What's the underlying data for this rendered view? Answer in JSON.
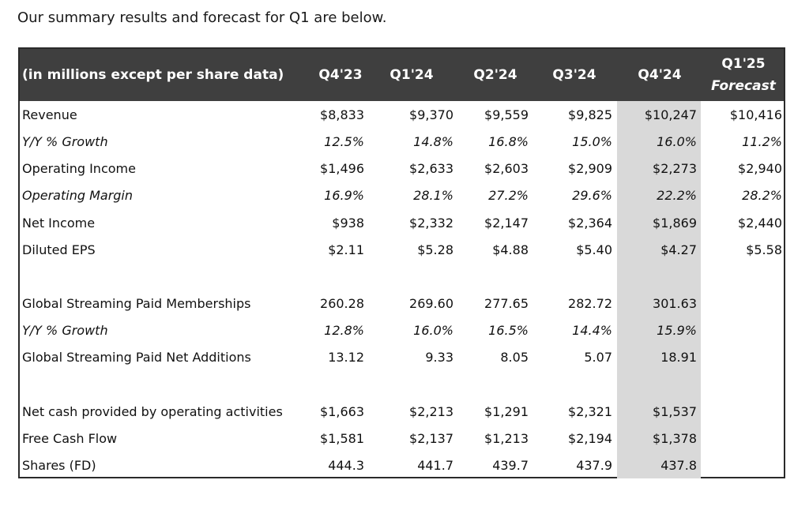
{
  "intro_text": "Our summary results and forecast for Q1 are below.",
  "table": {
    "header_label": "(in millions except per share data)",
    "columns": [
      "Q4'23",
      "Q1'24",
      "Q2'24",
      "Q3'24",
      "Q4'24"
    ],
    "forecast_column": {
      "line1": "Q1'25",
      "line2": "Forecast"
    },
    "highlighted_column": "Q4'24",
    "rows": [
      {
        "label": "Revenue",
        "italic": false,
        "values": [
          "$8,833",
          "$9,370",
          "$9,559",
          "$9,825",
          "$10,247",
          "$10,416"
        ]
      },
      {
        "label": "Y/Y % Growth",
        "italic": true,
        "values": [
          "12.5%",
          "14.8%",
          "16.8%",
          "15.0%",
          "16.0%",
          "11.2%"
        ]
      },
      {
        "label": "Operating Income",
        "italic": false,
        "values": [
          "$1,496",
          "$2,633",
          "$2,603",
          "$2,909",
          "$2,273",
          "$2,940"
        ]
      },
      {
        "label": "Operating Margin",
        "italic": true,
        "values": [
          "16.9%",
          "28.1%",
          "27.2%",
          "29.6%",
          "22.2%",
          "28.2%"
        ]
      },
      {
        "label": "Net Income",
        "italic": false,
        "values": [
          "$938",
          "$2,332",
          "$2,147",
          "$2,364",
          "$1,869",
          "$2,440"
        ]
      },
      {
        "label": "Diluted EPS",
        "italic": false,
        "values": [
          "$2.11",
          "$5.28",
          "$4.88",
          "$5.40",
          "$4.27",
          "$5.58"
        ]
      },
      {
        "label": "Global Streaming Paid Memberships",
        "italic": false,
        "values": [
          "260.28",
          "269.60",
          "277.65",
          "282.72",
          "301.63",
          ""
        ]
      },
      {
        "label": "Y/Y % Growth",
        "italic": true,
        "values": [
          "12.8%",
          "16.0%",
          "16.5%",
          "14.4%",
          "15.9%",
          ""
        ]
      },
      {
        "label": "Global Streaming Paid Net Additions",
        "italic": false,
        "values": [
          "13.12",
          "9.33",
          "8.05",
          "5.07",
          "18.91",
          ""
        ]
      },
      {
        "label": "Net cash provided by operating activities",
        "italic": false,
        "values": [
          "$1,663",
          "$2,213",
          "$1,291",
          "$2,321",
          "$1,537",
          ""
        ]
      },
      {
        "label": "Free Cash Flow",
        "italic": false,
        "values": [
          "$1,581",
          "$2,137",
          "$1,213",
          "$2,194",
          "$1,378",
          ""
        ]
      },
      {
        "label": "Shares (FD)",
        "italic": false,
        "values": [
          "444.3",
          "441.7",
          "439.7",
          "437.9",
          "437.8",
          ""
        ]
      }
    ]
  },
  "colors": {
    "header_bg": "#3f3f3f",
    "highlight_bg": "#d9d9d9"
  }
}
